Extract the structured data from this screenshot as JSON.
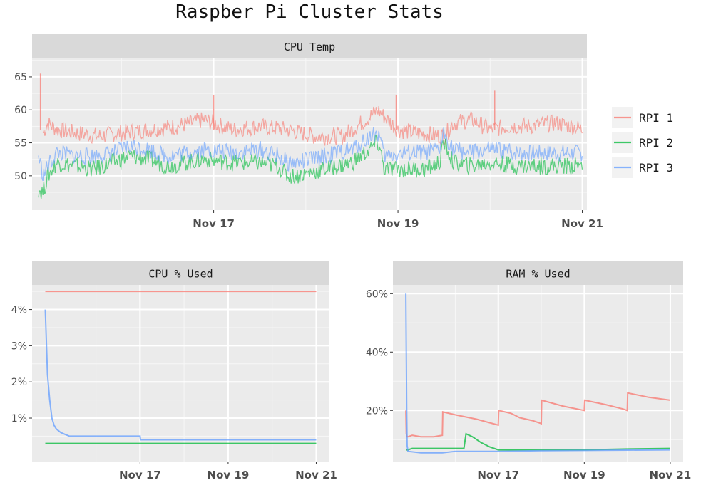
{
  "title": "Raspber Pi Cluster Stats",
  "colors": {
    "RPI 1": "#F8766D",
    "RPI 2": "#00BA38",
    "RPI 3": "#619CFF"
  },
  "legend": {
    "placement": "right",
    "entries": [
      "RPI 1",
      "RPI 2",
      "RPI 3"
    ]
  },
  "chart_data": [
    {
      "type": "line",
      "title": "CPU Temp",
      "xlabel": "",
      "ylabel": "",
      "x_ticks": [
        "Nov 17",
        "Nov 19",
        "Nov 21"
      ],
      "x_tick_days": [
        17,
        19,
        21
      ],
      "xlim_days": [
        15.03,
        21.05
      ],
      "yticks": [
        50,
        55,
        60,
        65
      ],
      "ylim": [
        44.8,
        67.8
      ],
      "grid": true,
      "series": [
        {
          "name": "RPI 1",
          "x_days": [
            15.15,
            15.2,
            15.3,
            15.5,
            15.75,
            16.0,
            16.3,
            16.6,
            16.9,
            17.2,
            17.5,
            17.8,
            18.1,
            18.4,
            18.55,
            18.7,
            18.78,
            18.85,
            19.0,
            19.2,
            19.5,
            19.6,
            19.8,
            20.0,
            20.2,
            20.4,
            20.7,
            20.9,
            21.0
          ],
          "values": [
            56.5,
            58.0,
            57.0,
            56.5,
            56.0,
            56.5,
            57.0,
            57.5,
            58.5,
            57.0,
            57.5,
            57.0,
            56.0,
            56.0,
            57.5,
            59.0,
            60.0,
            59.0,
            57.0,
            56.5,
            56.0,
            58.0,
            58.5,
            57.0,
            57.5,
            57.5,
            58.0,
            57.5,
            57.0
          ]
        },
        {
          "name": "RPI 2",
          "x_days": [
            15.1,
            15.15,
            15.2,
            15.25,
            15.3,
            15.5,
            15.7,
            15.9,
            16.1,
            16.3,
            16.5,
            16.7,
            16.9,
            17.2,
            17.5,
            17.7,
            17.8,
            17.9,
            18.2,
            18.5,
            18.7,
            18.77,
            18.8,
            18.85,
            19.1,
            19.3,
            19.45,
            19.5,
            19.6,
            19.8,
            20.0,
            20.3,
            20.5,
            20.8,
            21.0
          ],
          "values": [
            48.0,
            47.5,
            50.0,
            51.0,
            52.0,
            51.5,
            51.0,
            52.0,
            53.0,
            52.5,
            51.5,
            52.0,
            52.5,
            52.0,
            52.0,
            51.5,
            50.0,
            50.0,
            51.0,
            52.0,
            54.0,
            55.0,
            54.5,
            51.0,
            51.0,
            51.0,
            52.0,
            55.0,
            52.0,
            51.5,
            52.0,
            51.5,
            51.5,
            51.5,
            51.5
          ]
        },
        {
          "name": "RPI 3",
          "x_days": [
            15.1,
            15.15,
            15.2,
            15.25,
            15.3,
            15.5,
            15.7,
            15.9,
            16.1,
            16.3,
            16.5,
            16.7,
            16.9,
            17.2,
            17.5,
            17.7,
            17.8,
            17.9,
            18.2,
            18.5,
            18.7,
            18.77,
            18.8,
            18.85,
            19.1,
            19.3,
            19.45,
            19.5,
            19.6,
            19.8,
            20.0,
            20.3,
            20.5,
            20.8,
            21.0
          ],
          "values": [
            53.0,
            50.0,
            51.5,
            52.5,
            53.5,
            53.0,
            53.0,
            53.5,
            54.5,
            54.0,
            53.0,
            53.5,
            54.0,
            53.5,
            54.0,
            53.0,
            52.0,
            52.0,
            53.0,
            54.0,
            56.0,
            56.5,
            56.0,
            53.0,
            53.5,
            53.5,
            54.0,
            56.5,
            54.0,
            53.5,
            54.0,
            53.5,
            53.5,
            53.5,
            53.5
          ]
        }
      ]
    },
    {
      "type": "line",
      "title": "CPU % Used",
      "xlabel": "",
      "ylabel": "",
      "x_ticks": [
        "Nov 17",
        "Nov 19",
        "Nov 21"
      ],
      "x_tick_days": [
        17,
        19,
        21
      ],
      "xlim_days": [
        14.55,
        21.3
      ],
      "yticks": [
        "1%",
        "2%",
        "3%",
        "4%"
      ],
      "ytick_values": [
        1,
        2,
        3,
        4
      ],
      "ylim": [
        -0.2,
        4.68
      ],
      "grid": true,
      "series": [
        {
          "name": "RPI 1",
          "x_days": [
            14.85,
            21.0
          ],
          "values": [
            4.5,
            4.5
          ]
        },
        {
          "name": "RPI 2",
          "x_days": [
            14.85,
            21.0
          ],
          "values": [
            0.3,
            0.3
          ]
        },
        {
          "name": "RPI 3",
          "x_days": [
            14.85,
            14.9,
            14.95,
            15.0,
            15.05,
            15.1,
            15.2,
            15.3,
            15.4,
            15.5,
            16.0,
            17.0,
            17.01,
            21.0
          ],
          "values": [
            4.0,
            2.2,
            1.5,
            1.0,
            0.8,
            0.7,
            0.6,
            0.55,
            0.5,
            0.5,
            0.5,
            0.5,
            0.4,
            0.4
          ]
        }
      ]
    },
    {
      "type": "line",
      "title": "RAM % Used",
      "xlabel": "",
      "ylabel": "",
      "x_ticks": [
        "Nov 17",
        "Nov 19",
        "Nov 21"
      ],
      "x_tick_days": [
        17,
        19,
        21
      ],
      "xlim_days": [
        14.55,
        21.3
      ],
      "yticks": [
        "20%",
        "40%",
        "60%"
      ],
      "ytick_values": [
        20,
        40,
        60
      ],
      "ylim": [
        2.5,
        63.0
      ],
      "grid": true,
      "series": [
        {
          "name": "RPI 1",
          "x_days": [
            14.85,
            14.86,
            14.88,
            14.9,
            15.0,
            15.2,
            15.5,
            15.7,
            15.71,
            16.0,
            16.5,
            17.0,
            17.01,
            17.3,
            17.5,
            17.8,
            18.0,
            18.01,
            18.5,
            19.0,
            19.01,
            19.5,
            19.9,
            20.0,
            20.01,
            20.5,
            21.0
          ],
          "values": [
            20.0,
            12.0,
            11.0,
            11.0,
            11.5,
            11.0,
            11.0,
            11.5,
            19.5,
            18.5,
            17.0,
            15.0,
            20.0,
            19.0,
            17.5,
            16.5,
            15.5,
            23.5,
            21.5,
            20.0,
            23.5,
            22.0,
            20.5,
            20.0,
            26.0,
            24.5,
            23.5
          ]
        },
        {
          "name": "RPI 2",
          "x_days": [
            14.85,
            14.9,
            15.0,
            15.5,
            16.0,
            16.2,
            16.25,
            16.4,
            16.6,
            16.8,
            17.0,
            17.5,
            18.0,
            19.0,
            20.0,
            21.0
          ],
          "values": [
            6.5,
            6.5,
            7.0,
            7.0,
            7.0,
            7.0,
            12.0,
            11.0,
            9.0,
            7.5,
            6.5,
            6.5,
            6.5,
            6.5,
            6.8,
            7.0
          ]
        },
        {
          "name": "RPI 3",
          "x_days": [
            14.85,
            14.86,
            14.87,
            14.88,
            14.9,
            15.2,
            15.5,
            15.7,
            16.0,
            17.0,
            18.0,
            19.0,
            20.0,
            21.0
          ],
          "values": [
            60.0,
            40.0,
            20.0,
            8.0,
            6.0,
            5.5,
            5.5,
            5.5,
            6.0,
            6.0,
            6.2,
            6.3,
            6.4,
            6.5
          ]
        }
      ]
    }
  ]
}
